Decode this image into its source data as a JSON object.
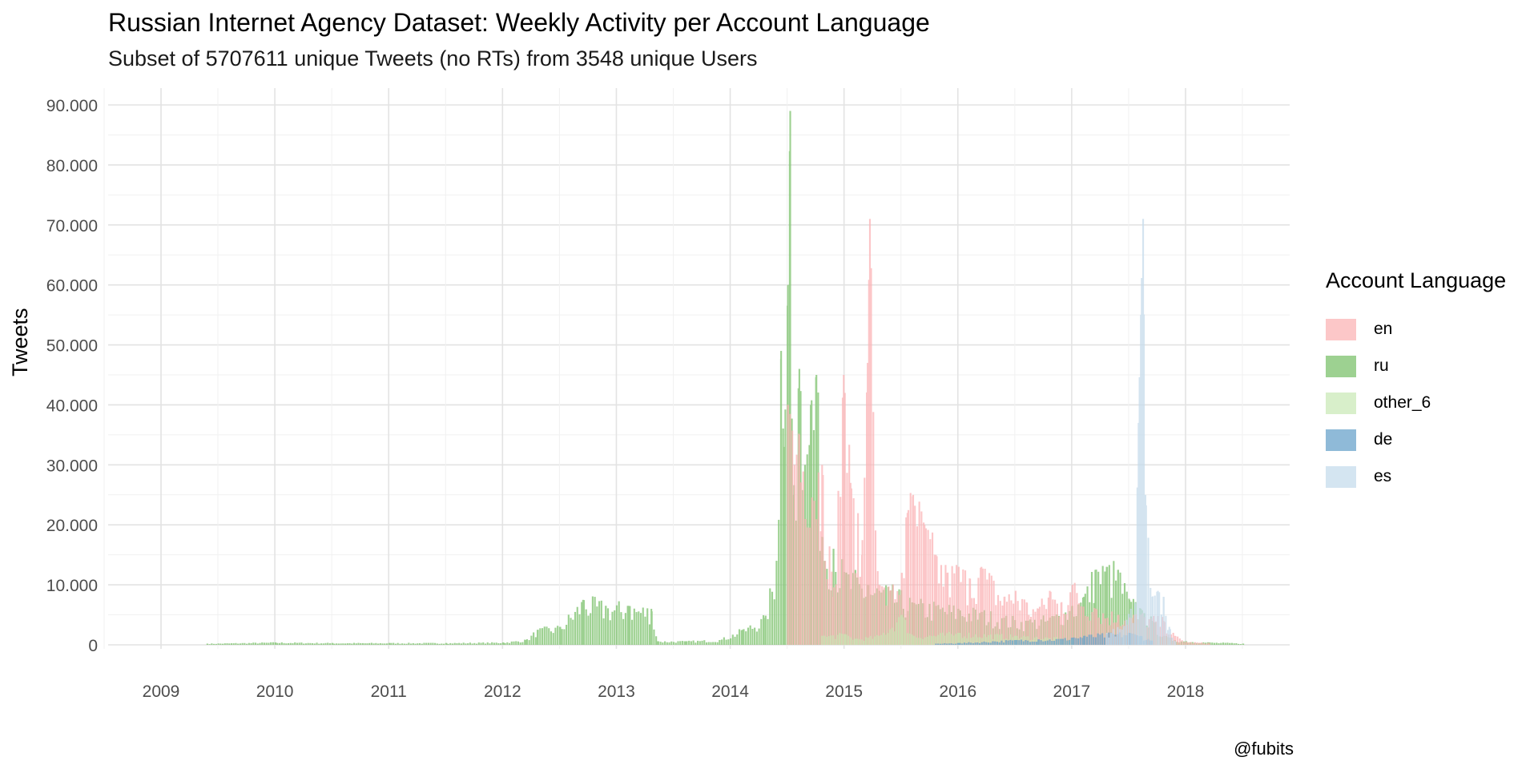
{
  "header": {
    "title": "Russian Internet Agency Dataset: Weekly Activity per Account Language",
    "subtitle": "Subset of 5707611 unique Tweets (no RTs) from 3548 unique Users",
    "caption": "@fubits"
  },
  "chart_data": {
    "type": "bar",
    "ylabel": "Tweets",
    "ylim": [
      0,
      95000
    ],
    "xlim": [
      2008.6,
      2019.0
    ],
    "yticks": [
      {
        "value": 0,
        "label": "0"
      },
      {
        "value": 10000,
        "label": "10.000"
      },
      {
        "value": 20000,
        "label": "20.000"
      },
      {
        "value": 30000,
        "label": "30.000"
      },
      {
        "value": 40000,
        "label": "40.000"
      },
      {
        "value": 50000,
        "label": "50.000"
      },
      {
        "value": 60000,
        "label": "60.000"
      },
      {
        "value": 70000,
        "label": "70.000"
      },
      {
        "value": 80000,
        "label": "80.000"
      },
      {
        "value": 90000,
        "label": "90.000"
      }
    ],
    "xticks": [
      {
        "value": 2009,
        "label": "2009"
      },
      {
        "value": 2010,
        "label": "2010"
      },
      {
        "value": 2011,
        "label": "2011"
      },
      {
        "value": 2012,
        "label": "2012"
      },
      {
        "value": 2013,
        "label": "2013"
      },
      {
        "value": 2014,
        "label": "2014"
      },
      {
        "value": 2015,
        "label": "2015"
      },
      {
        "value": 2016,
        "label": "2016"
      },
      {
        "value": 2017,
        "label": "2017"
      },
      {
        "value": 2018,
        "label": "2018"
      }
    ],
    "grid": true,
    "legend_title": "Account Language",
    "legend_position": "right",
    "series": [
      {
        "name": "ru",
        "color": "#8cc97e",
        "opacity": 0.85,
        "points": [
          [
            2009.4,
            200
          ],
          [
            2010.0,
            400
          ],
          [
            2010.5,
            300
          ],
          [
            2011.0,
            300
          ],
          [
            2011.5,
            300
          ],
          [
            2012.0,
            400
          ],
          [
            2012.2,
            800
          ],
          [
            2012.3,
            2500
          ],
          [
            2012.5,
            3000
          ],
          [
            2012.7,
            7500
          ],
          [
            2012.9,
            6500
          ],
          [
            2013.1,
            6500
          ],
          [
            2013.3,
            6000
          ],
          [
            2013.35,
            600
          ],
          [
            2013.6,
            600
          ],
          [
            2013.9,
            800
          ],
          [
            2014.1,
            2500
          ],
          [
            2014.3,
            4500
          ],
          [
            2014.4,
            14000
          ],
          [
            2014.44,
            49000
          ],
          [
            2014.47,
            33000
          ],
          [
            2014.5,
            60000
          ],
          [
            2014.52,
            89000
          ],
          [
            2014.55,
            25000
          ],
          [
            2014.6,
            46000
          ],
          [
            2014.65,
            30000
          ],
          [
            2014.7,
            40000
          ],
          [
            2014.75,
            45000
          ],
          [
            2014.8,
            18000
          ],
          [
            2014.9,
            16000
          ],
          [
            2015.0,
            12000
          ],
          [
            2015.2,
            10000
          ],
          [
            2015.4,
            9000
          ],
          [
            2015.6,
            7000
          ],
          [
            2015.8,
            6500
          ],
          [
            2016.0,
            6000
          ],
          [
            2016.2,
            5500
          ],
          [
            2016.4,
            4500
          ],
          [
            2016.6,
            4000
          ],
          [
            2016.8,
            4500
          ],
          [
            2017.0,
            6500
          ],
          [
            2017.1,
            8000
          ],
          [
            2017.2,
            12500
          ],
          [
            2017.3,
            13000
          ],
          [
            2017.4,
            12500
          ],
          [
            2017.5,
            7500
          ],
          [
            2017.6,
            6000
          ],
          [
            2017.7,
            4000
          ],
          [
            2017.8,
            1500
          ],
          [
            2017.9,
            800
          ],
          [
            2018.0,
            600
          ],
          [
            2018.2,
            400
          ],
          [
            2018.4,
            300
          ],
          [
            2018.5,
            200
          ]
        ]
      },
      {
        "name": "en",
        "color": "#fbb4b6",
        "opacity": 0.75,
        "points": [
          [
            2014.5,
            40000
          ],
          [
            2014.6,
            35000
          ],
          [
            2014.8,
            30000
          ],
          [
            2014.9,
            8000
          ],
          [
            2014.99,
            45000
          ],
          [
            2015.05,
            27000
          ],
          [
            2015.15,
            15000
          ],
          [
            2015.2,
            47000
          ],
          [
            2015.22,
            71000
          ],
          [
            2015.3,
            10000
          ],
          [
            2015.4,
            9000
          ],
          [
            2015.5,
            12000
          ],
          [
            2015.55,
            22000
          ],
          [
            2015.6,
            25000
          ],
          [
            2015.7,
            20000
          ],
          [
            2015.8,
            15000
          ],
          [
            2015.9,
            12000
          ],
          [
            2016.0,
            13000
          ],
          [
            2016.1,
            11000
          ],
          [
            2016.2,
            13000
          ],
          [
            2016.4,
            8000
          ],
          [
            2016.5,
            9000
          ],
          [
            2016.6,
            7000
          ],
          [
            2016.7,
            6000
          ],
          [
            2016.8,
            9000
          ],
          [
            2016.9,
            7000
          ],
          [
            2017.0,
            10000
          ],
          [
            2017.2,
            6000
          ],
          [
            2017.4,
            5000
          ],
          [
            2017.6,
            5000
          ],
          [
            2017.8,
            4000
          ],
          [
            2017.9,
            1500
          ],
          [
            2018.0,
            500
          ],
          [
            2018.2,
            300
          ]
        ]
      },
      {
        "name": "other_6",
        "color": "#c8e8b4",
        "opacity": 0.7,
        "points": [
          [
            2014.8,
            1500
          ],
          [
            2015.0,
            1800
          ],
          [
            2015.1,
            1000
          ],
          [
            2015.3,
            1500
          ],
          [
            2015.5,
            5000
          ],
          [
            2015.6,
            1500
          ],
          [
            2016.0,
            2000
          ],
          [
            2016.5,
            1500
          ],
          [
            2017.0,
            1000
          ]
        ]
      },
      {
        "name": "de",
        "color": "#6aa3cb",
        "opacity": 0.75,
        "points": [
          [
            2015.8,
            200
          ],
          [
            2016.0,
            300
          ],
          [
            2016.3,
            600
          ],
          [
            2016.5,
            800
          ],
          [
            2016.7,
            900
          ],
          [
            2016.9,
            1000
          ],
          [
            2017.0,
            1200
          ],
          [
            2017.1,
            1500
          ],
          [
            2017.3,
            1800
          ],
          [
            2017.5,
            2000
          ],
          [
            2017.6,
            1500
          ],
          [
            2017.7,
            700
          ]
        ]
      },
      {
        "name": "es",
        "color": "#c6dcec",
        "opacity": 0.75,
        "points": [
          [
            2017.3,
            2000
          ],
          [
            2017.45,
            3000
          ],
          [
            2017.55,
            7000
          ],
          [
            2017.58,
            37000
          ],
          [
            2017.6,
            55000
          ],
          [
            2017.62,
            71000
          ],
          [
            2017.64,
            25000
          ],
          [
            2017.7,
            8000
          ],
          [
            2017.75,
            9000
          ],
          [
            2017.8,
            8000
          ],
          [
            2017.85,
            3000
          ],
          [
            2017.9,
            500
          ]
        ]
      }
    ]
  }
}
